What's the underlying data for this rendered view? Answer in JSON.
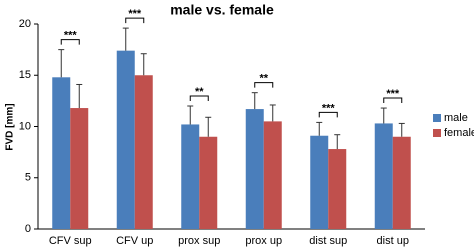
{
  "chart_data": {
    "type": "bar",
    "title": "male vs. female",
    "y_label": "FVD [mm]",
    "categories": [
      "CFV sup",
      "CFV up",
      "prox sup",
      "prox up",
      "dist sup",
      "dist up"
    ],
    "series": [
      {
        "name": "male",
        "color": "#4a7ebb",
        "values": [
          14.8,
          17.4,
          10.2,
          11.7,
          9.1,
          10.3
        ],
        "errors": [
          2.7,
          2.2,
          1.8,
          1.6,
          1.3,
          1.5
        ]
      },
      {
        "name": "female",
        "color": "#c0504d",
        "values": [
          11.8,
          15.0,
          9.0,
          10.5,
          7.8,
          9.0
        ],
        "errors": [
          2.3,
          2.1,
          1.9,
          1.6,
          1.4,
          1.3
        ]
      }
    ],
    "annotations": [
      "***",
      "***",
      "**",
      "**",
      "***",
      "***"
    ],
    "ylim": [
      0,
      20
    ],
    "yticks": [
      0,
      5,
      10,
      15,
      20
    ],
    "legend": "right"
  }
}
